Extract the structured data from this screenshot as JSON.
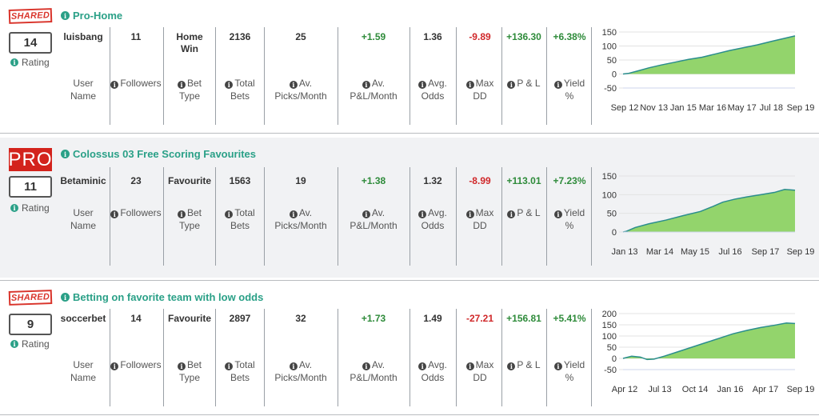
{
  "labels": {
    "rating": "Rating",
    "user_name": [
      "User",
      "Name"
    ],
    "followers": "Followers",
    "bet_type": [
      "Bet",
      "Type"
    ],
    "total_bets": [
      "Total",
      "Bets"
    ],
    "picks_month": [
      "Av.",
      "Picks/Month"
    ],
    "pl_month": [
      "Av.",
      "P&L/Month"
    ],
    "avg_odds": [
      "Avg.",
      "Odds"
    ],
    "max_dd": [
      "Max",
      "DD"
    ],
    "pl": "P & L",
    "yield": [
      "Yield",
      "%"
    ]
  },
  "cards": [
    {
      "badge": "SHARED",
      "title": "Pro-Home",
      "rating": "14",
      "user": "luisbang",
      "followers": "11",
      "bet_type": [
        "Home",
        "Win"
      ],
      "total_bets": "2136",
      "picks_month": "25",
      "pl_month": "+1.59",
      "avg_odds": "1.36",
      "max_dd": "-9.89",
      "pl": "+136.30",
      "yield": "+6.38%",
      "chart_data": {
        "type": "area",
        "y_ticks": [
          "150",
          "100",
          "50",
          "0",
          "-50"
        ],
        "ylim": [
          -50,
          150
        ],
        "x_ticks": [
          "Sep 12",
          "Nov 13",
          "Jan 15",
          "Mar 16",
          "May 17",
          "Jul 18",
          "Sep 19"
        ],
        "x": [
          0,
          0.03,
          0.08,
          0.15,
          0.22,
          0.3,
          0.38,
          0.46,
          0.54,
          0.62,
          0.7,
          0.78,
          0.86,
          0.93,
          1.0
        ],
        "values": [
          0,
          2,
          10,
          22,
          32,
          42,
          52,
          60,
          72,
          84,
          94,
          104,
          116,
          126,
          136
        ]
      }
    },
    {
      "badge": "PRO",
      "title": "Colossus 03 Free Scoring Favourites",
      "rating": "11",
      "user": "Betaminic",
      "followers": "23",
      "bet_type": [
        "Favourite"
      ],
      "total_bets": "1563",
      "picks_month": "19",
      "pl_month": "+1.38",
      "avg_odds": "1.32",
      "max_dd": "-8.99",
      "pl": "+113.01",
      "yield": "+7.23%",
      "chart_data": {
        "type": "area",
        "y_ticks": [
          "150",
          "100",
          "50",
          "0"
        ],
        "ylim": [
          0,
          150
        ],
        "x_ticks": [
          "Jan 13",
          "Mar 14",
          "May 15",
          "Jul 16",
          "Sep 17",
          "Sep 19"
        ],
        "x": [
          0,
          0.02,
          0.07,
          0.15,
          0.25,
          0.35,
          0.45,
          0.52,
          0.58,
          0.65,
          0.72,
          0.8,
          0.88,
          0.94,
          1.0
        ],
        "values": [
          0,
          2,
          12,
          22,
          32,
          44,
          55,
          68,
          80,
          88,
          94,
          100,
          106,
          114,
          112
        ]
      }
    },
    {
      "badge": "SHARED",
      "title": "Betting on favorite team with low odds",
      "rating": "9",
      "user": "soccerbet",
      "followers": "14",
      "bet_type": [
        "Favourite"
      ],
      "total_bets": "2897",
      "picks_month": "32",
      "pl_month": "+1.73",
      "avg_odds": "1.49",
      "max_dd": "-27.21",
      "pl": "+156.81",
      "yield": "+5.41%",
      "chart_data": {
        "type": "area",
        "y_ticks": [
          "200",
          "150",
          "100",
          "50",
          "0",
          "-50"
        ],
        "ylim": [
          -50,
          200
        ],
        "x_ticks": [
          "Apr 12",
          "Jul 13",
          "Oct 14",
          "Jan 16",
          "Apr 17",
          "Sep 19"
        ],
        "x": [
          0,
          0.05,
          0.1,
          0.14,
          0.18,
          0.24,
          0.32,
          0.4,
          0.48,
          0.56,
          0.64,
          0.72,
          0.8,
          0.88,
          0.95,
          1.0
        ],
        "values": [
          0,
          10,
          6,
          -5,
          -3,
          10,
          30,
          50,
          70,
          90,
          110,
          125,
          138,
          148,
          158,
          156
        ]
      }
    }
  ]
}
